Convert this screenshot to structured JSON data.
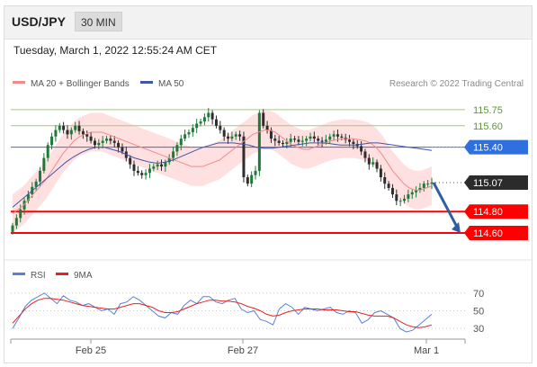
{
  "header": {
    "symbol": "USD/JPY",
    "timeframe": "30 MIN"
  },
  "datetime": "Tuesday, March 1, 2022 12:55:24 AM CET",
  "legend": {
    "ma20_bollinger": "MA 20 + Bollinger Bands",
    "ma50": "MA 50",
    "credit": "Research © 2022 Trading Central"
  },
  "rsi_legend": {
    "rsi": "RSI",
    "ma9": "9MA"
  },
  "colors": {
    "up": "#1e7a3a",
    "down": "#2d2d2d",
    "ma20": "#f08c8c",
    "band": "#fdd5d5",
    "ma50": "#3f57a6",
    "resistance": "#9dcf6c",
    "support": "#ff0000",
    "pivot": "#2f6fde",
    "rsi": "#5b7fd6",
    "rsi_ma": "#e52222"
  },
  "chart_data": [
    {
      "type": "candlestick",
      "series_note": "USD/JPY 30-minute candles with MA20 Bollinger bands and MA50",
      "x_labels": [
        "Feb 25",
        "Feb 27",
        "Mar 1"
      ],
      "ylim": [
        114.55,
        115.85
      ],
      "levels": [
        {
          "value": 115.75,
          "label": "115.75",
          "kind": "resistance"
        },
        {
          "value": 115.6,
          "label": "115.60",
          "kind": "resistance"
        },
        {
          "value": 115.4,
          "label": "115.40",
          "kind": "pivot"
        },
        {
          "value": 115.07,
          "label": "115.07",
          "kind": "last"
        },
        {
          "value": 114.8,
          "label": "114.80",
          "kind": "support"
        },
        {
          "value": 114.6,
          "label": "114.60",
          "kind": "support"
        }
      ],
      "close": [
        114.67,
        114.74,
        114.82,
        114.9,
        114.96,
        115.03,
        115.08,
        115.18,
        115.3,
        115.42,
        115.5,
        115.56,
        115.6,
        115.56,
        115.52,
        115.56,
        115.6,
        115.55,
        115.52,
        115.5,
        115.46,
        115.42,
        115.44,
        115.46,
        115.48,
        115.46,
        115.44,
        115.4,
        115.36,
        115.3,
        115.24,
        115.18,
        115.16,
        115.14,
        115.16,
        115.2,
        115.22,
        115.24,
        115.22,
        115.26,
        115.3,
        115.36,
        115.42,
        115.48,
        115.52,
        115.54,
        115.58,
        115.62,
        115.64,
        115.68,
        115.72,
        115.66,
        115.6,
        115.56,
        115.5,
        115.48,
        115.5,
        115.52,
        115.5,
        115.12,
        115.06,
        115.14,
        115.18,
        115.72,
        115.6,
        115.56,
        115.48,
        115.46,
        115.44,
        115.43,
        115.45,
        115.48,
        115.47,
        115.45,
        115.46,
        115.48,
        115.5,
        115.48,
        115.46,
        115.45,
        115.47,
        115.5,
        115.52,
        115.5,
        115.49,
        115.47,
        115.45,
        115.43,
        115.41,
        115.36,
        115.3,
        115.24,
        115.26,
        115.2,
        115.12,
        115.06,
        115.02,
        114.96,
        114.9,
        114.9,
        114.92,
        114.96,
        114.98,
        115.0,
        115.02,
        115.06,
        115.06,
        115.07
      ],
      "ma20": [
        114.78,
        114.82,
        114.86,
        114.92,
        114.98,
        115.04,
        115.1,
        115.18,
        115.26,
        115.34,
        115.4,
        115.46,
        115.5,
        115.52,
        115.54,
        115.54,
        115.54,
        115.52,
        115.5,
        115.48,
        115.46,
        115.44,
        115.42,
        115.4,
        115.38,
        115.36,
        115.34,
        115.32,
        115.3,
        115.28,
        115.26,
        115.24,
        115.22,
        115.22,
        115.22,
        115.24,
        115.26,
        115.28,
        115.32,
        115.36,
        115.4,
        115.44,
        115.48,
        115.52,
        115.54,
        115.56,
        115.56,
        115.54,
        115.5,
        115.46,
        115.42,
        115.4,
        115.38,
        115.38,
        115.4,
        115.42,
        115.44,
        115.46,
        115.47,
        115.48,
        115.48,
        115.48,
        115.47,
        115.46,
        115.44,
        115.4,
        115.34,
        115.26,
        115.18,
        115.12,
        115.06,
        115.02,
        115.0,
        115.0,
        115.02,
        115.04
      ],
      "bb_width": 0.18,
      "ma50": [
        114.84,
        114.9,
        114.96,
        115.02,
        115.08,
        115.14,
        115.2,
        115.26,
        115.31,
        115.35,
        115.38,
        115.4,
        115.4,
        115.38,
        115.36,
        115.33,
        115.3,
        115.28,
        115.26,
        115.25,
        115.26,
        115.28,
        115.31,
        115.34,
        115.37,
        115.4,
        115.42,
        115.44,
        115.44,
        115.44,
        115.43,
        115.42,
        115.4,
        115.39,
        115.39,
        115.4,
        115.41,
        115.42,
        115.43,
        115.44,
        115.44,
        115.44,
        115.43,
        115.42,
        115.42,
        115.42,
        115.43,
        115.44,
        115.44,
        115.43,
        115.42,
        115.41,
        115.4,
        115.39,
        115.38,
        115.37
      ],
      "projection": {
        "from": 115.07,
        "to": 114.6
      }
    },
    {
      "type": "line",
      "name": "RSI",
      "ylim": [
        20,
        80
      ],
      "y_ticks": [
        70,
        50,
        30
      ],
      "rsi": [
        30,
        42,
        55,
        62,
        66,
        70,
        64,
        58,
        67,
        62,
        60,
        56,
        58,
        54,
        50,
        52,
        46,
        58,
        60,
        66,
        62,
        56,
        50,
        44,
        42,
        48,
        46,
        56,
        62,
        58,
        66,
        66,
        60,
        58,
        62,
        64,
        52,
        48,
        50,
        40,
        38,
        34,
        52,
        58,
        54,
        46,
        54,
        52,
        50,
        52,
        54,
        48,
        46,
        50,
        48,
        36,
        40,
        48,
        50,
        46,
        42,
        30,
        26,
        28,
        34,
        40,
        46
      ],
      "rsi_ma": [
        36,
        44,
        52,
        58,
        62,
        64,
        64,
        63,
        62,
        60,
        58,
        56,
        55,
        54,
        53,
        52,
        52,
        54,
        56,
        58,
        58,
        56,
        54,
        50,
        48,
        48,
        49,
        52,
        55,
        58,
        60,
        62,
        62,
        61,
        61,
        60,
        58,
        55,
        53,
        50,
        46,
        44,
        45,
        48,
        50,
        51,
        52,
        52,
        52,
        51,
        51,
        51,
        50,
        49,
        49,
        47,
        45,
        44,
        44,
        44,
        42,
        38,
        34,
        32,
        31,
        32,
        34
      ]
    }
  ]
}
